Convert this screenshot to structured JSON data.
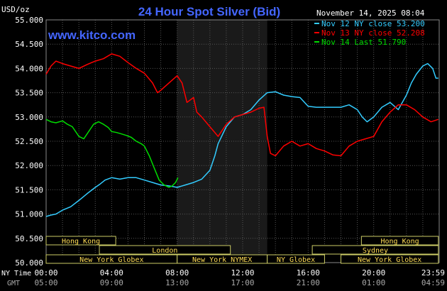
{
  "chart_data": {
    "type": "line",
    "title": "24 Hour Spot Silver (Bid)",
    "y_unit_label": "USD/oz",
    "site_label": "www.kitco.com",
    "timestamp": "November 14, 2025 08:04",
    "ylim": [
      50.0,
      55.0
    ],
    "y_ticks": [
      "55.000",
      "54.500",
      "54.000",
      "53.500",
      "53.000",
      "52.500",
      "52.000",
      "51.500",
      "51.000",
      "50.500",
      "50.000"
    ],
    "x_range_hours": [
      0,
      24
    ],
    "x_ticks_ny": [
      "00:00",
      "04:00",
      "08:00",
      "12:00",
      "16:00",
      "20:00",
      "23:59"
    ],
    "x_ticks_gmt": [
      "05:00",
      "09:00",
      "13:00",
      "17:00",
      "21:00",
      "01:00",
      "04:59"
    ],
    "x_row_labels": [
      "NY Time",
      "GMT"
    ],
    "grid": true,
    "highlight_hours": [
      8.0,
      13.5
    ],
    "legend": [
      {
        "text": "Nov 12 NY close 53.200",
        "color": "#33ccff"
      },
      {
        "text": "Nov 13 NY close 52.208",
        "color": "#ff0000"
      },
      {
        "text": "Nov 14 Last 51.790",
        "color": "#00dd00"
      }
    ],
    "series": [
      {
        "color": "#33ccff",
        "x": [
          0,
          0.3,
          0.6,
          1.0,
          1.5,
          2.0,
          2.5,
          3.0,
          3.3,
          3.6,
          4.0,
          4.5,
          5.0,
          5.5,
          6.0,
          6.5,
          7.0,
          7.5,
          8.0,
          8.5,
          9.0,
          9.5,
          10.0,
          10.3,
          10.5,
          11.0,
          11.5,
          12.0,
          12.5,
          13.0,
          13.5,
          14.0,
          14.5,
          15.0,
          15.5,
          16.0,
          16.5,
          17.0,
          17.5,
          18.0,
          18.5,
          19.0,
          19.3,
          19.6,
          20.0,
          20.5,
          21.0,
          21.5,
          22.0,
          22.3,
          22.6,
          23.0,
          23.3,
          23.6,
          23.8,
          23.95
        ],
        "y": [
          50.95,
          50.98,
          51.0,
          51.08,
          51.15,
          51.28,
          51.42,
          51.55,
          51.62,
          51.7,
          51.75,
          51.72,
          51.75,
          51.75,
          51.7,
          51.65,
          51.6,
          51.58,
          51.55,
          51.6,
          51.65,
          51.72,
          51.9,
          52.2,
          52.45,
          52.8,
          53.0,
          53.05,
          53.15,
          53.35,
          53.5,
          53.52,
          53.45,
          53.42,
          53.4,
          53.22,
          53.2,
          53.2,
          53.2,
          53.2,
          53.25,
          53.15,
          53.0,
          52.9,
          53.0,
          53.2,
          53.3,
          53.15,
          53.45,
          53.7,
          53.88,
          54.05,
          54.1,
          54.0,
          53.8,
          53.8
        ]
      },
      {
        "color": "#ff0000",
        "x": [
          0,
          0.3,
          0.6,
          1.0,
          1.5,
          2.0,
          2.5,
          3.0,
          3.5,
          4.0,
          4.5,
          5.0,
          5.5,
          6.0,
          6.5,
          6.8,
          7.0,
          7.5,
          8.0,
          8.3,
          8.6,
          9.0,
          9.2,
          9.5,
          10.0,
          10.5,
          11.0,
          11.5,
          12.0,
          12.5,
          13.0,
          13.3,
          13.5,
          13.7,
          14.0,
          14.5,
          15.0,
          15.5,
          16.0,
          16.5,
          17.0,
          17.5,
          18.0,
          18.5,
          19.0,
          19.5,
          20.0,
          20.5,
          21.0,
          21.5,
          22.0,
          22.5,
          23.0,
          23.5,
          23.95
        ],
        "y": [
          53.88,
          54.05,
          54.15,
          54.1,
          54.05,
          54.0,
          54.08,
          54.15,
          54.2,
          54.3,
          54.25,
          54.12,
          54.0,
          53.9,
          53.7,
          53.5,
          53.55,
          53.7,
          53.85,
          53.7,
          53.3,
          53.4,
          53.1,
          53.0,
          52.8,
          52.6,
          52.85,
          53.0,
          53.05,
          53.1,
          53.18,
          53.2,
          52.6,
          52.25,
          52.2,
          52.4,
          52.5,
          52.4,
          52.45,
          52.35,
          52.3,
          52.22,
          52.2,
          52.4,
          52.5,
          52.55,
          52.6,
          52.9,
          53.1,
          53.25,
          53.25,
          53.15,
          53.0,
          52.9,
          52.95
        ]
      },
      {
        "color": "#00dd00",
        "x": [
          0,
          0.3,
          0.6,
          1.0,
          1.3,
          1.6,
          2.0,
          2.3,
          2.6,
          2.9,
          3.2,
          3.5,
          3.8,
          4.0,
          4.3,
          4.6,
          4.9,
          5.2,
          5.5,
          5.8,
          6.0,
          6.3,
          6.6,
          6.9,
          7.2,
          7.5,
          7.7,
          7.9,
          8.05
        ],
        "y": [
          52.95,
          52.9,
          52.88,
          52.92,
          52.85,
          52.8,
          52.6,
          52.55,
          52.7,
          52.85,
          52.9,
          52.85,
          52.78,
          52.7,
          52.68,
          52.65,
          52.62,
          52.58,
          52.5,
          52.45,
          52.4,
          52.2,
          51.95,
          51.7,
          51.6,
          51.55,
          51.58,
          51.65,
          51.75
        ]
      }
    ],
    "sessions": [
      {
        "name": "Hong Kong",
        "row": 0,
        "start": 0,
        "end": 4.25
      },
      {
        "name": "Hong Kong",
        "row": 0,
        "start": 19.25,
        "end": 23.95
      },
      {
        "name": "London",
        "row": 1,
        "start": 3.25,
        "end": 11.25
      },
      {
        "name": "Sydney",
        "row": 1,
        "start": 16.25,
        "end": 23.95
      },
      {
        "name": "New York Globex",
        "row": 2,
        "start": 0,
        "end": 8.0
      },
      {
        "name": "New York NYMEX",
        "row": 2,
        "start": 8.0,
        "end": 13.5
      },
      {
        "name": "NY Globex",
        "row": 2,
        "start": 13.5,
        "end": 17.0
      },
      {
        "name": "New York Globex",
        "row": 2,
        "start": 18.0,
        "end": 23.95
      }
    ]
  }
}
